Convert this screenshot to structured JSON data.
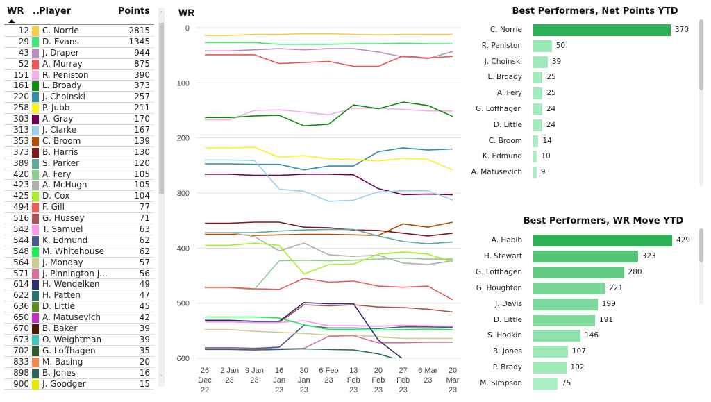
{
  "table": {
    "headers": {
      "wr": "WR",
      "color": "..",
      "player": "Player",
      "points": "Points"
    },
    "sort": {
      "column": "WR",
      "direction": "ascending"
    },
    "rows": [
      {
        "wr": "12",
        "player": "C. Norrie",
        "points": "2815",
        "color": "#F6CC48"
      },
      {
        "wr": "29",
        "player": "D. Evans",
        "points": "1345",
        "color": "#44E57A"
      },
      {
        "wr": "43",
        "player": "J. Draper",
        "points": "944",
        "color": "#B98EC0"
      },
      {
        "wr": "52",
        "player": "A. Murray",
        "points": "875",
        "color": "#EC5656"
      },
      {
        "wr": "151",
        "player": "R. Peniston",
        "points": "390",
        "color": "#F5AEE8"
      },
      {
        "wr": "161",
        "player": "L. Broady",
        "points": "373",
        "color": "#0E8E0E"
      },
      {
        "wr": "220",
        "player": "J. Choinski",
        "points": "257",
        "color": "#2F8EAA"
      },
      {
        "wr": "258",
        "player": "P. Jubb",
        "points": "211",
        "color": "#F8F41E"
      },
      {
        "wr": "303",
        "player": "A. Gray",
        "points": "170",
        "color": "#730052"
      },
      {
        "wr": "313",
        "player": "J. Clarke",
        "points": "167",
        "color": "#96D2F2"
      },
      {
        "wr": "353",
        "player": "C. Broom",
        "points": "139",
        "color": "#B04F00"
      },
      {
        "wr": "373",
        "player": "B. Harris",
        "points": "130",
        "color": "#7E1A1A"
      },
      {
        "wr": "389",
        "player": "S. Parker",
        "points": "120",
        "color": "#5AAAA0"
      },
      {
        "wr": "420",
        "player": "A. Fery",
        "points": "105",
        "color": "#8ECC8C"
      },
      {
        "wr": "423",
        "player": "A. McHugh",
        "points": "105",
        "color": "#AFAFAF"
      },
      {
        "wr": "425",
        "player": "D. Cox",
        "points": "104",
        "color": "#A8EE2A"
      },
      {
        "wr": "494",
        "player": "F. Gill",
        "points": "77",
        "color": "#EE5B5B"
      },
      {
        "wr": "516",
        "player": "G. Hussey",
        "points": "71",
        "color": "#B05252"
      },
      {
        "wr": "542",
        "player": "T. Samuel",
        "points": "63",
        "color": "#F89AE8"
      },
      {
        "wr": "544",
        "player": "K. Edmund",
        "points": "62",
        "color": "#465A8C"
      },
      {
        "wr": "548",
        "player": "M. Whitehouse",
        "points": "62",
        "color": "#1EF054"
      },
      {
        "wr": "564",
        "player": "J. Monday",
        "points": "57",
        "color": "#CDCE94"
      },
      {
        "wr": "571",
        "player": "J. Pinnington J...",
        "points": "56",
        "color": "#DA709C"
      },
      {
        "wr": "614",
        "player": "H. Wendelken",
        "points": "49",
        "color": "#283070"
      },
      {
        "wr": "622",
        "player": "H. Patten",
        "points": "47",
        "color": "#267070"
      },
      {
        "wr": "636",
        "player": "D. Little",
        "points": "45",
        "color": "#5E8C1E"
      },
      {
        "wr": "650",
        "player": "A. Matusevich",
        "points": "42",
        "color": "#C82EC2"
      },
      {
        "wr": "670",
        "player": "B. Baker",
        "points": "39",
        "color": "#4A1A00"
      },
      {
        "wr": "673",
        "player": "O. Weightman",
        "points": "39",
        "color": "#3EC8BC"
      },
      {
        "wr": "702",
        "player": "G. Loffhagen",
        "points": "35",
        "color": "#2E5A2E"
      },
      {
        "wr": "833",
        "player": "M. Basing",
        "points": "20",
        "color": "#F4884A"
      },
      {
        "wr": "898",
        "player": "B. Jones",
        "points": "16",
        "color": "#2A6458"
      },
      {
        "wr": "900",
        "player": "J. Goodger",
        "points": "15",
        "color": "#E8E800"
      }
    ]
  },
  "chart_data": [
    {
      "type": "line",
      "title": "WR",
      "xlabel": "",
      "ylabel": "WR",
      "y_inverted": true,
      "ylim": [
        0,
        600
      ],
      "yticks": [
        0,
        100,
        200,
        300,
        400,
        500,
        600
      ],
      "grid": true,
      "x": [
        "26 Dec 22",
        "2 Jan 23",
        "9 Jan 23",
        "16 Jan 23",
        "30 Jan 23",
        "6 Feb 23",
        "13 Feb 23",
        "20 Feb 23",
        "27 Feb 23",
        "6 Mar 23",
        "20 Mar 23"
      ],
      "x_tick_lines": [
        [
          "26",
          "Dec",
          "22"
        ],
        [
          "2 Jan",
          "23"
        ],
        [
          "9 Jan",
          "23"
        ],
        [
          "16",
          "Jan",
          "23"
        ],
        [
          "30",
          "Jan",
          "23"
        ],
        [
          "6 Feb",
          "23"
        ],
        [
          "13",
          "Feb",
          "23"
        ],
        [
          "20",
          "Feb",
          "23"
        ],
        [
          "27",
          "Feb",
          "23"
        ],
        [
          "6 Mar",
          "23"
        ],
        [
          "20",
          "Mar",
          "23"
        ]
      ],
      "series": [
        {
          "name": "C. Norrie",
          "color": "#F6CC48",
          "values": [
            14,
            14,
            12,
            12,
            11,
            11,
            12,
            13,
            12,
            12,
            12
          ]
        },
        {
          "name": "D. Evans",
          "color": "#44E57A",
          "values": [
            27,
            27,
            27,
            30,
            30,
            30,
            29,
            29,
            28,
            29,
            29
          ]
        },
        {
          "name": "J. Draper",
          "color": "#B98EC0",
          "values": [
            42,
            42,
            40,
            38,
            40,
            38,
            38,
            44,
            53,
            56,
            43
          ]
        },
        {
          "name": "A. Murray",
          "color": "#EC5656",
          "values": [
            49,
            49,
            49,
            65,
            63,
            61,
            70,
            70,
            51,
            55,
            52
          ]
        },
        {
          "name": "R. Peniston",
          "color": "#F5AEE8",
          "values": [
            167,
            167,
            150,
            149,
            153,
            158,
            146,
            146,
            148,
            151,
            151
          ]
        },
        {
          "name": "L. Broady",
          "color": "#0E8E0E",
          "values": [
            163,
            163,
            160,
            159,
            178,
            175,
            140,
            147,
            135,
            141,
            161
          ]
        },
        {
          "name": "J. Choinski",
          "color": "#2F8EAA",
          "values": [
            247,
            247,
            248,
            248,
            258,
            251,
            251,
            225,
            218,
            222,
            220
          ]
        },
        {
          "name": "P. Jubb",
          "color": "#F8F41E",
          "values": [
            218,
            218,
            217,
            235,
            232,
            238,
            239,
            242,
            237,
            239,
            258
          ]
        },
        {
          "name": "A. Gray",
          "color": "#730052",
          "values": [
            266,
            266,
            268,
            268,
            266,
            266,
            267,
            292,
            303,
            302,
            303
          ]
        },
        {
          "name": "J. Clarke",
          "color": "#96D2F2",
          "values": [
            240,
            240,
            241,
            293,
            297,
            315,
            313,
            298,
            296,
            296,
            313
          ]
        },
        {
          "name": "C. Broom",
          "color": "#B04F00",
          "values": [
            375,
            375,
            377,
            376,
            375,
            375,
            376,
            377,
            356,
            362,
            353
          ]
        },
        {
          "name": "B. Harris",
          "color": "#7E1A1A",
          "values": [
            355,
            355,
            353,
            353,
            362,
            363,
            367,
            368,
            373,
            378,
            373
          ]
        },
        {
          "name": "S. Parker",
          "color": "#5AAAA0",
          "values": [
            372,
            372,
            372,
            369,
            367,
            366,
            366,
            378,
            388,
            392,
            389
          ]
        },
        {
          "name": "A. Fery",
          "color": "#8ECC8C",
          "values": [
            472,
            472,
            475,
            423,
            422,
            423,
            422,
            420,
            418,
            420,
            420
          ]
        },
        {
          "name": "A. McHugh",
          "color": "#AFAFAF",
          "values": [
            372,
            372,
            379,
            405,
            391,
            412,
            415,
            413,
            427,
            430,
            423
          ]
        },
        {
          "name": "D. Cox",
          "color": "#A8EE2A",
          "values": [
            395,
            395,
            391,
            395,
            447,
            430,
            429,
            411,
            407,
            411,
            425
          ]
        },
        {
          "name": "F. Gill",
          "color": "#EE5B5B",
          "values": [
            471,
            471,
            474,
            475,
            455,
            462,
            460,
            469,
            471,
            469,
            494
          ]
        },
        {
          "name": "G. Hussey",
          "color": "#B05252",
          "values": [
            534,
            534,
            535,
            535,
            503,
            505,
            503,
            507,
            508,
            511,
            516
          ]
        },
        {
          "name": "T. Samuel",
          "color": "#F89AE8",
          "values": [
            534,
            534,
            535,
            535,
            532,
            541,
            541,
            542,
            540,
            541,
            542
          ]
        },
        {
          "name": "K. Edmund",
          "color": "#465A8C",
          "values": [
            581,
            581,
            582,
            580,
            540,
            545,
            545,
            546,
            543,
            543,
            544
          ]
        },
        {
          "name": "M. Whitehouse",
          "color": "#1EF054",
          "values": [
            525,
            525,
            525,
            527,
            539,
            548,
            548,
            549,
            548,
            547,
            548
          ]
        },
        {
          "name": "J. Monday",
          "color": "#CDCE94",
          "values": [
            548,
            548,
            551,
            553,
            555,
            558,
            558,
            561,
            564,
            564,
            564
          ]
        },
        {
          "name": "J. Pinnington J...",
          "color": "#DA709C",
          "values": [
            582,
            582,
            583,
            583,
            582,
            560,
            559,
            572,
            572,
            571,
            571
          ]
        },
        {
          "name": "H. Wendelken",
          "color": "#283070",
          "values": [
            531,
            531,
            533,
            533,
            499,
            501,
            501,
            567,
            602,
            614,
            614
          ]
        },
        {
          "name": "H. Patten",
          "color": "#267070",
          "values": [
            584,
            584,
            585,
            584,
            583,
            584,
            585,
            592,
            605,
            614,
            622
          ]
        }
      ]
    },
    {
      "type": "bar",
      "orientation": "horizontal",
      "title": "Best Performers, Net Points YTD",
      "categories": [
        "C. Norrie",
        "R. Peniston",
        "J. Choinski",
        "L. Broady",
        "A. Fery",
        "G. Loffhagen",
        "D. Little",
        "C. Broom",
        "K. Edmund",
        "A. Matusevich"
      ],
      "values": [
        370,
        50,
        39,
        25,
        25,
        24,
        24,
        14,
        10,
        9
      ],
      "color_scale": [
        "#A8EFC2",
        "#2EB054"
      ]
    },
    {
      "type": "bar",
      "orientation": "horizontal",
      "title": "Best Performers, WR Move YTD",
      "categories": [
        "A. Habib",
        "H. Stewart",
        "G. Loffhagen",
        "G. Houghton",
        "J. Davis",
        "D. Little",
        "S. Hodkin",
        "B. Jones",
        "P. Brady",
        "M. Simpson"
      ],
      "values": [
        429,
        323,
        280,
        221,
        199,
        191,
        146,
        107,
        102,
        75
      ],
      "color_scale": [
        "#A8EFC2",
        "#2EB054"
      ]
    }
  ]
}
